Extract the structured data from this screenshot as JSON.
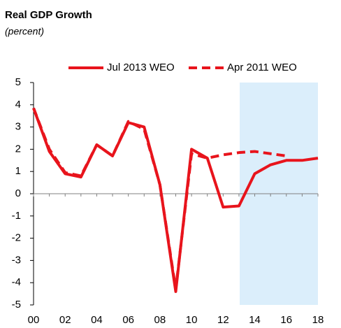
{
  "chart_data": {
    "type": "line",
    "title": "Real GDP Growth",
    "subtitle": "(percent)",
    "categories": [
      "00",
      null,
      "02",
      null,
      "04",
      null,
      "06",
      null,
      "08",
      null,
      "10",
      null,
      "12",
      null,
      "14",
      null,
      "16",
      null,
      "18"
    ],
    "series": [
      {
        "name": "Jul 2013 WEO",
        "color": "#e8141c",
        "dash": false,
        "values": [
          3.85,
          1.9,
          0.9,
          0.75,
          2.2,
          1.7,
          3.2,
          3.0,
          0.4,
          -4.4,
          2.0,
          1.6,
          -0.6,
          -0.55,
          0.9,
          1.3,
          1.5,
          1.5,
          1.6
        ]
      },
      {
        "name": "Apr 2011 WEO",
        "color": "#e8141c",
        "dash": true,
        "values": [
          3.85,
          2.0,
          0.95,
          0.8,
          2.2,
          1.7,
          3.25,
          2.9,
          0.4,
          -4.3,
          1.8,
          1.6,
          1.75,
          1.85,
          1.9,
          1.8,
          1.7,
          null,
          null
        ]
      }
    ],
    "ylim": [
      -5,
      5
    ],
    "yticks": [
      -5,
      -4,
      -3,
      -2,
      -1,
      0,
      1,
      2,
      3,
      4,
      5
    ]
  }
}
